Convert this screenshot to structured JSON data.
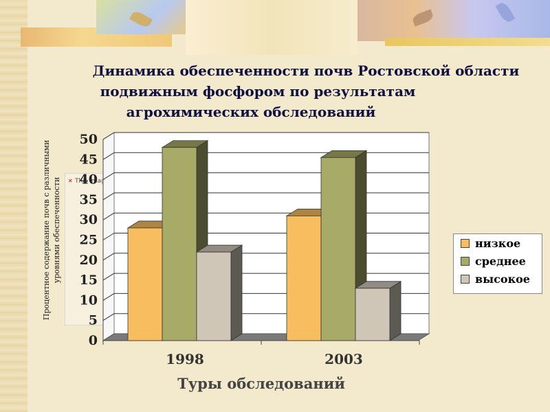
{
  "title_lines": [
    "Динамика обеспеченности почв Ростовской области",
    "подвижным фосфором по результатам",
    "агрохимических обследований"
  ],
  "broken_image_text": "This image cannot currently be",
  "chart_data": {
    "type": "bar",
    "style": "3d",
    "categories": [
      "1998",
      "2003"
    ],
    "series": [
      {
        "name": "низкое",
        "values": [
          28,
          31
        ],
        "color": "#f8bd5e"
      },
      {
        "name": "среднее",
        "values": [
          48,
          45.5
        ],
        "color": "#a8ab67"
      },
      {
        "name": "высокое",
        "values": [
          22,
          13
        ],
        "color": "#cfc6b8"
      }
    ],
    "yticks": [
      0,
      5,
      10,
      15,
      20,
      25,
      30,
      35,
      40,
      45,
      50
    ],
    "ylim": [
      0,
      50
    ],
    "ylabel": "Процентное содержание почв с различными уровнями обеспеченности",
    "xlabel": "Туры обследований",
    "grid": true,
    "legend_position": "right"
  }
}
